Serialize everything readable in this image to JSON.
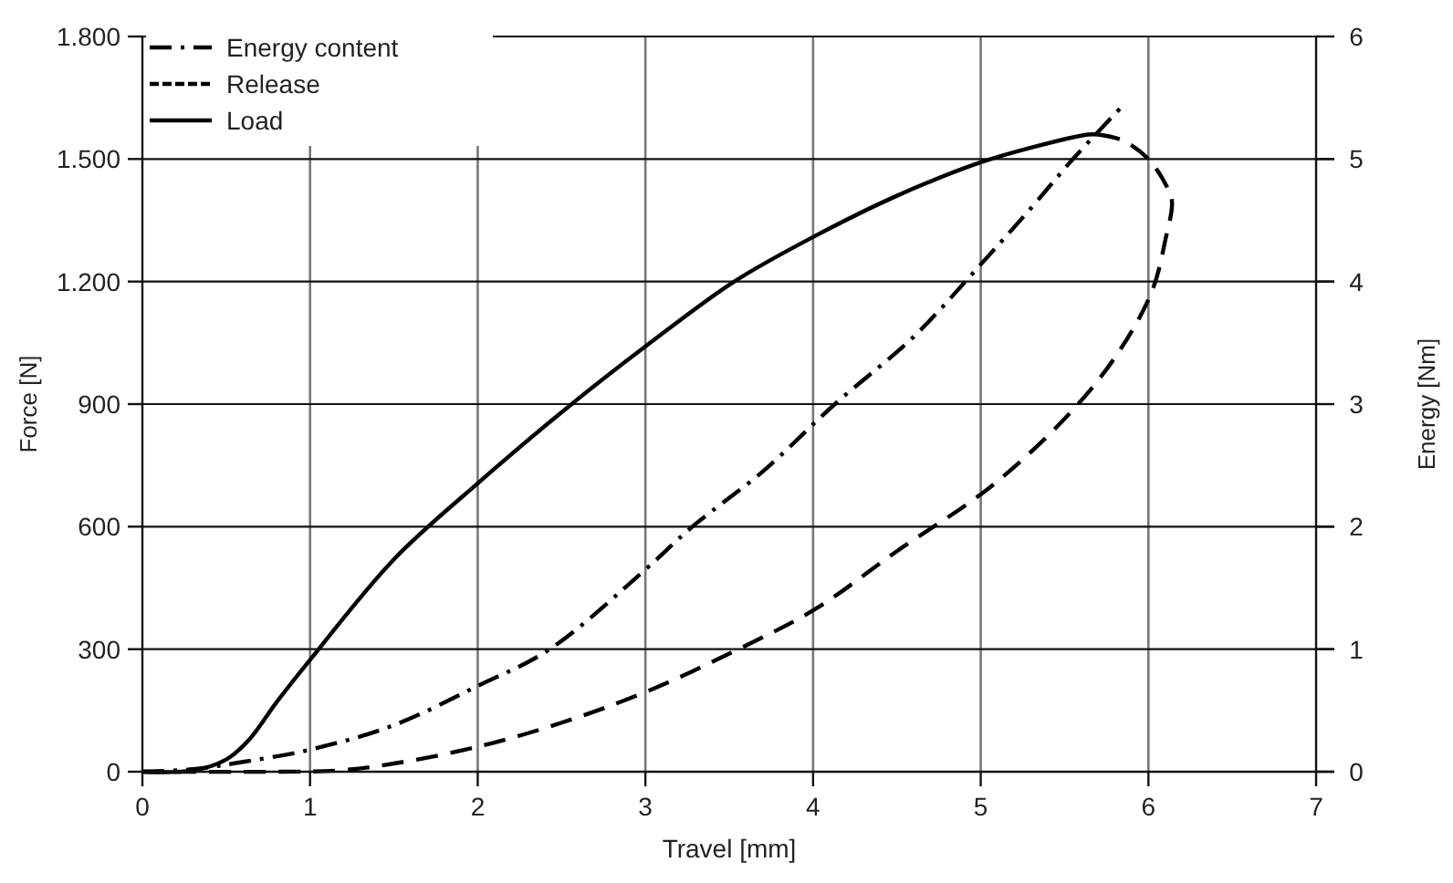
{
  "chart_data": {
    "type": "line",
    "xlabel": "Travel [mm]",
    "ylabel": "Force [N]",
    "y2label": "Energy [Nm]",
    "xlim": [
      0,
      7
    ],
    "xticks": [
      0,
      1,
      2,
      3,
      4,
      5,
      6,
      7
    ],
    "ylim": [
      0,
      1800
    ],
    "yticks": [
      0,
      300,
      600,
      900,
      {
        "value": 1200,
        "label": "1.200"
      },
      {
        "value": 1500,
        "label": "1.500"
      },
      {
        "value": 1800,
        "label": "1.800"
      }
    ],
    "y2lim": [
      0,
      6
    ],
    "y2ticks": [
      0,
      1,
      2,
      3,
      4,
      5,
      6
    ],
    "grid": true,
    "legend": "top left",
    "series": [
      {
        "name": "Energy content",
        "color": "#000000",
        "axis": "y2",
        "line_style": "dashdot",
        "x": [
          0,
          0.3,
          0.6,
          1,
          1.5,
          2,
          2.43,
          3,
          3.28,
          3.7,
          4.13,
          4.6,
          5,
          5.3,
          5.55,
          5.85
        ],
        "values": [
          0,
          0.02,
          0.08,
          0.18,
          0.38,
          0.7,
          1,
          1.65,
          2,
          2.45,
          3,
          3.55,
          4.14,
          4.6,
          5,
          5.44
        ]
      },
      {
        "name": "Release",
        "color": "#000000",
        "line_style": "dashed",
        "x": [
          5.7,
          5.85,
          6.0,
          6.1,
          6.14,
          6.1,
          6.02,
          5.82,
          5.53,
          5.06,
          4.5,
          4.02,
          3.55,
          3,
          2.5,
          2,
          1.5,
          1.17,
          0.8,
          0
        ],
        "values": [
          1560,
          1545,
          1500,
          1440,
          1398,
          1300,
          1175,
          1026,
          877,
          698,
          540,
          400,
          299,
          195,
          120,
          61,
          20,
          3,
          0,
          0
        ]
      },
      {
        "name": "Load",
        "color": "#000000",
        "line_style": "solid",
        "x": [
          0,
          0.3,
          0.5,
          0.64,
          0.8,
          1,
          1.5,
          2,
          2.5,
          3,
          3.53,
          4,
          4.5,
          5,
          5.3,
          5.64,
          5.7
        ],
        "values": [
          0,
          3,
          30,
          80,
          170,
          274,
          520,
          706,
          880,
          1041,
          1200,
          1309,
          1410,
          1492,
          1528,
          1560,
          1560
        ]
      }
    ]
  }
}
